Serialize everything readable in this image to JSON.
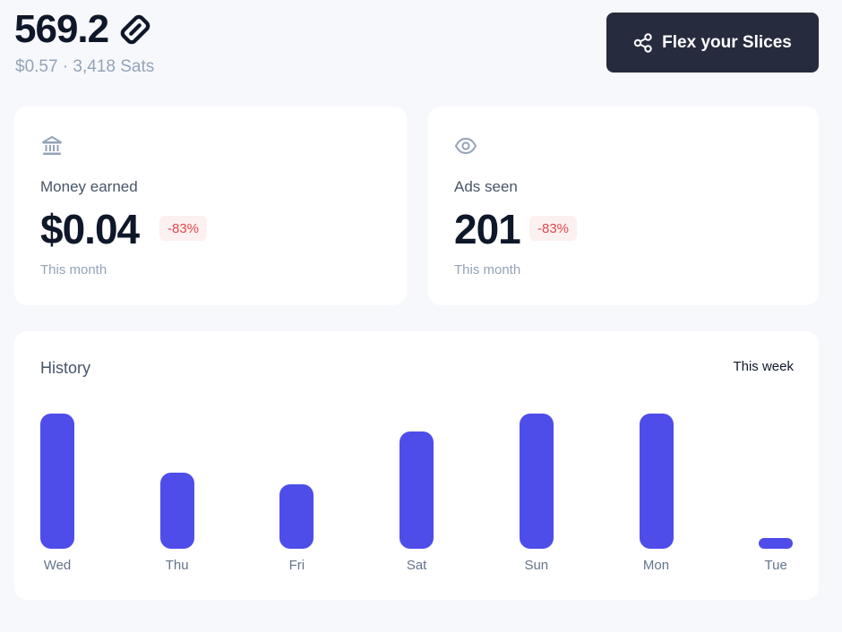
{
  "header": {
    "balance": "569.2",
    "balance_icon": "slice-token-icon",
    "sub": "$0.57 · 3,418 Sats",
    "flex_button_label": "Flex your Slices",
    "flex_button_icon": "share-icon"
  },
  "stats": {
    "money": {
      "icon": "bank-icon",
      "label": "Money earned",
      "value": "$0.04",
      "change": "-83%",
      "period": "This month"
    },
    "ads": {
      "icon": "eye-icon",
      "label": "Ads seen",
      "value": "201",
      "change": "-83%",
      "period": "This month"
    }
  },
  "history": {
    "title": "History",
    "period": "This week"
  },
  "chart_data": {
    "type": "bar",
    "categories": [
      "Wed",
      "Thu",
      "Fri",
      "Sat",
      "Sun",
      "Mon",
      "Tue"
    ],
    "values": [
      1.0,
      0.56,
      0.48,
      0.87,
      1.0,
      1.0,
      0.08
    ],
    "ylim": [
      0,
      1
    ]
  },
  "colors": {
    "bar": "#4f4de9",
    "button_bg": "#262b3d",
    "badge_bg": "#fdf0f0",
    "badge_text": "#e0494d"
  }
}
